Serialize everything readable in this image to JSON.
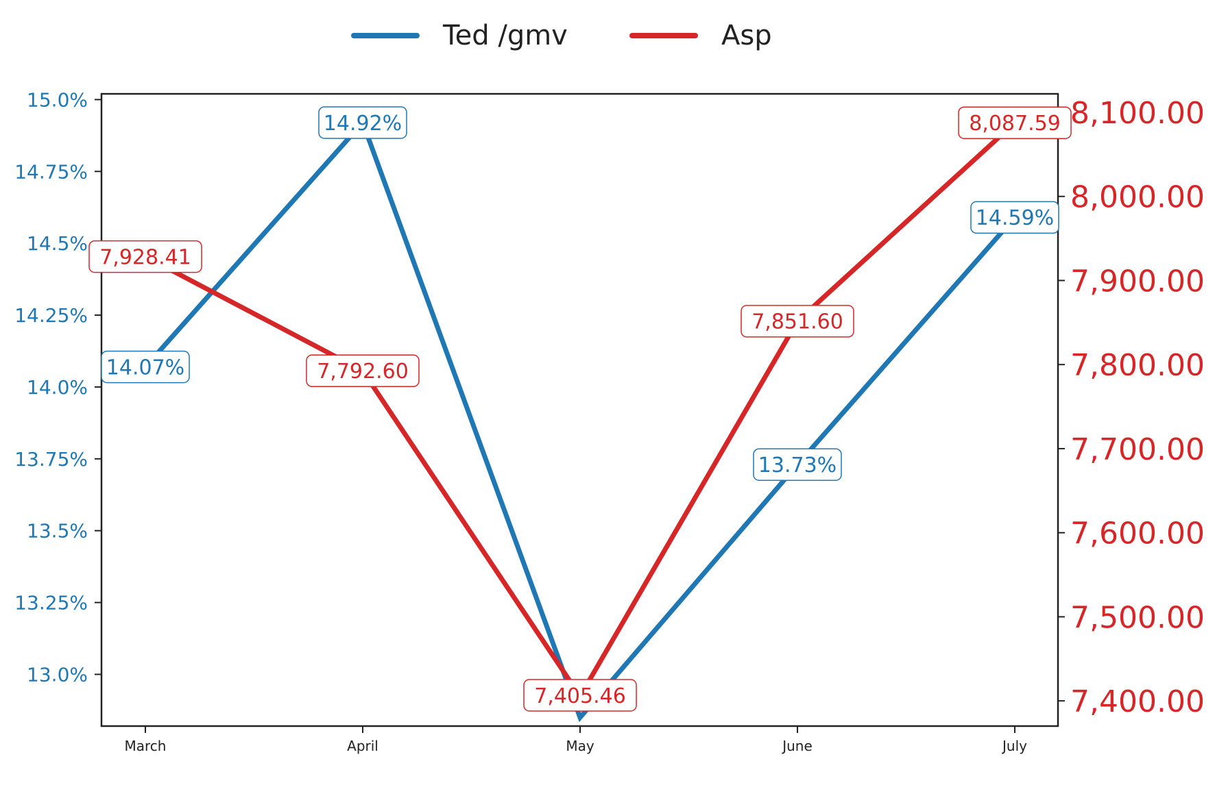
{
  "chart_data": {
    "type": "line",
    "categories": [
      "March",
      "April",
      "May",
      "June",
      "July"
    ],
    "series": [
      {
        "name": "Ted /gmv",
        "axis": "left",
        "color": "#1f77b4",
        "values": [
          14.07,
          14.92,
          12.85,
          13.73,
          14.59
        ],
        "labels": [
          "14.07%",
          "14.92%",
          null,
          "13.73%",
          "14.59%"
        ]
      },
      {
        "name": "Asp",
        "axis": "right",
        "color": "#d62728",
        "values": [
          7928.41,
          7792.6,
          7405.46,
          7851.6,
          8087.59
        ],
        "labels": [
          "7,928.41",
          "7,792.60",
          "7,405.46",
          "7,851.60",
          "8,087.59"
        ]
      }
    ],
    "left_axis": {
      "ylim": [
        12.82,
        15.02
      ],
      "ticks": [
        13.0,
        13.25,
        13.5,
        13.75,
        14.0,
        14.25,
        14.5,
        14.75,
        15.0
      ],
      "tick_labels": [
        "13.0%",
        "13.25%",
        "13.5%",
        "13.75%",
        "14.0%",
        "14.25%",
        "14.5%",
        "14.75%",
        "15.0%"
      ],
      "color": "#1f77b4"
    },
    "right_axis": {
      "ylim": [
        7370,
        8122
      ],
      "ticks": [
        7400,
        7500,
        7600,
        7700,
        7800,
        7900,
        8000,
        8100
      ],
      "tick_labels": [
        "7,400.00",
        "7,500.00",
        "7,600.00",
        "7,700.00",
        "7,800.00",
        "7,900.00",
        "8,000.00",
        "8,100.00"
      ],
      "color": "#d62728"
    },
    "legend": {
      "position": "top-center"
    },
    "grid": false
  }
}
